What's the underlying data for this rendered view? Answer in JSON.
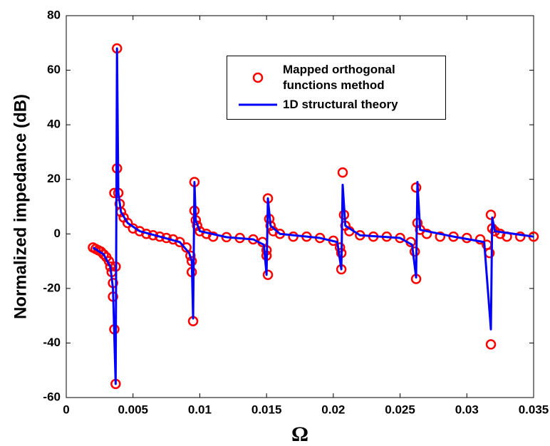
{
  "chart_data": {
    "type": "line",
    "xlabel": "Ω",
    "ylabel": "Normalized impedance (dB)",
    "xlim": [
      0,
      0.035
    ],
    "ylim": [
      -60,
      80
    ],
    "xticks": [
      0,
      0.005,
      0.01,
      0.015,
      0.02,
      0.025,
      0.03,
      0.035
    ],
    "yticks": [
      -60,
      -40,
      -20,
      0,
      20,
      40,
      60,
      80
    ],
    "legend": "upper right",
    "series": [
      {
        "name": "Mapped orthogonal functions method",
        "color": "#ff0000",
        "style": "markers",
        "x": [
          0.002,
          0.0022,
          0.0024,
          0.0026,
          0.0028,
          0.003,
          0.0032,
          0.0033,
          0.0034,
          0.0035,
          0.0035,
          0.0036,
          0.0037,
          0.0037,
          0.0036,
          0.0038,
          0.0038,
          0.0039,
          0.004,
          0.0041,
          0.0043,
          0.0046,
          0.005,
          0.0055,
          0.006,
          0.0065,
          0.007,
          0.0075,
          0.008,
          0.0085,
          0.009,
          0.0093,
          0.0094,
          0.0094,
          0.0095,
          0.0096,
          0.0096,
          0.0097,
          0.0098,
          0.01,
          0.0105,
          0.011,
          0.012,
          0.013,
          0.014,
          0.0147,
          0.015,
          0.015,
          0.0151,
          0.0151,
          0.0152,
          0.0153,
          0.0155,
          0.016,
          0.017,
          0.018,
          0.019,
          0.02,
          0.0205,
          0.0206,
          0.0206,
          0.0207,
          0.0208,
          0.0209,
          0.0212,
          0.022,
          0.023,
          0.024,
          0.025,
          0.0258,
          0.0261,
          0.0262,
          0.0262,
          0.0263,
          0.0265,
          0.027,
          0.028,
          0.029,
          0.03,
          0.031,
          0.0315,
          0.0317,
          0.0318,
          0.0318,
          0.0319,
          0.0321,
          0.0325,
          0.033,
          0.034,
          0.035
        ],
        "values": [
          -5,
          -5.5,
          -6,
          -6.5,
          -7.5,
          -8.5,
          -10,
          -12,
          -14,
          -18,
          -23,
          -35,
          -55,
          -12,
          15,
          68,
          24,
          15,
          11,
          8,
          6,
          4,
          2,
          1,
          0,
          -0.5,
          -1,
          -1.5,
          -2,
          -3,
          -5,
          -8,
          -10,
          -14,
          -32,
          19,
          8.5,
          5,
          3,
          1,
          0,
          -1,
          -1.2,
          -1.5,
          -2,
          -3,
          -6,
          -8,
          -15,
          13,
          5.5,
          3,
          1,
          0,
          -1,
          -1,
          -1.5,
          -2.5,
          -5,
          -7,
          -13,
          22.5,
          7,
          3,
          1,
          -0.5,
          -1,
          -1,
          -1.5,
          -3,
          -6.5,
          -16.5,
          17,
          4,
          1.5,
          0,
          -1,
          -1,
          -1.5,
          -2,
          -4,
          -7,
          -40.5,
          7,
          2,
          1,
          0,
          -1,
          -1,
          -1
        ]
      },
      {
        "name": "1D structural theory",
        "color": "#0000ff",
        "style": "line",
        "x": [
          0.002,
          0.0028,
          0.0033,
          0.0035,
          0.0037,
          0.0038,
          0.0039,
          0.0041,
          0.0046,
          0.0055,
          0.007,
          0.0085,
          0.0092,
          0.0094,
          0.0095,
          0.0096,
          0.0097,
          0.01,
          0.012,
          0.014,
          0.0148,
          0.015,
          0.0151,
          0.0153,
          0.016,
          0.019,
          0.0203,
          0.0206,
          0.0207,
          0.0209,
          0.022,
          0.025,
          0.0259,
          0.0262,
          0.0263,
          0.0265,
          0.029,
          0.0313,
          0.0318,
          0.0319,
          0.0321,
          0.035
        ],
        "values": [
          -5,
          -7.5,
          -12,
          -20,
          -55,
          68,
          15,
          8,
          4,
          1,
          -1,
          -3,
          -7,
          -10,
          -31,
          19,
          5,
          1,
          -1.2,
          -2,
          -4,
          -15,
          13,
          3,
          0,
          -1.5,
          -3,
          -13,
          18,
          3,
          -0.5,
          -1.5,
          -4,
          -16,
          19,
          1.5,
          -1,
          -3,
          -35,
          6,
          1,
          -1
        ]
      }
    ]
  }
}
